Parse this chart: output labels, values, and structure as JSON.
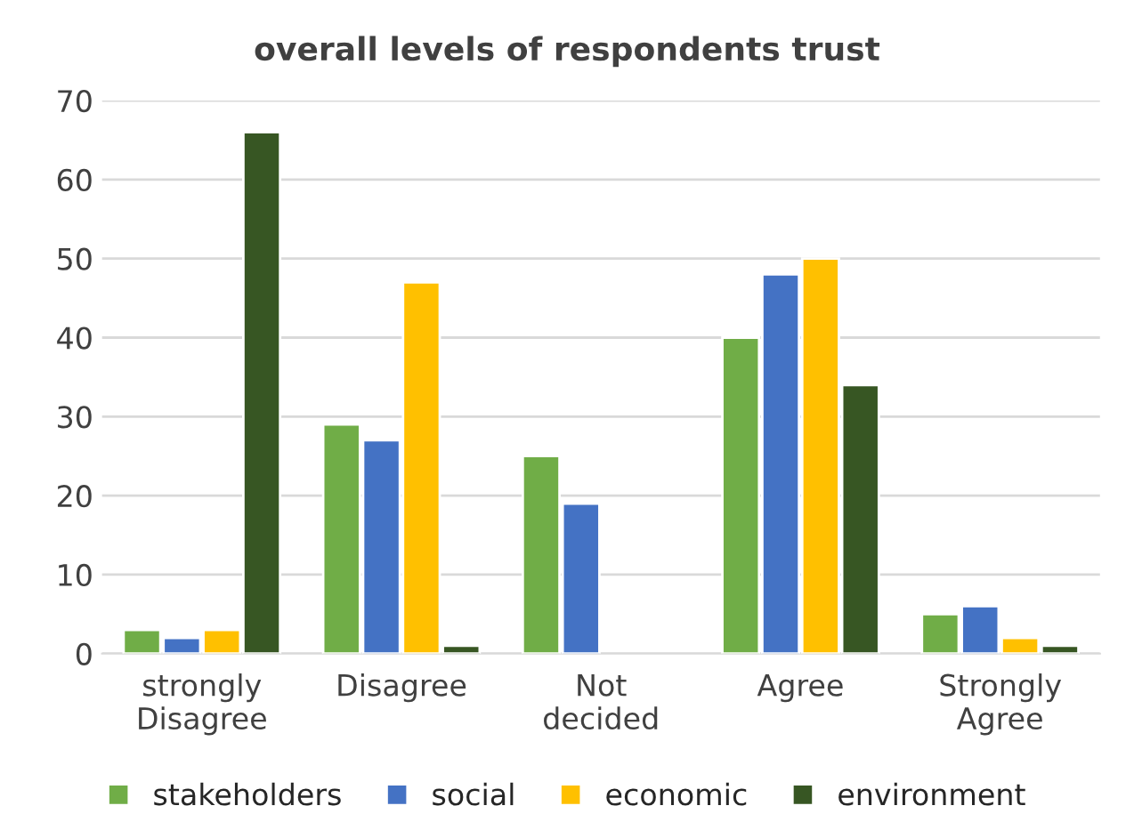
{
  "chart_data": {
    "type": "bar",
    "title": "overall levels of respondents trust",
    "categories": [
      "strongly\nDisagree",
      "Disagree",
      "Not\ndecided",
      "Agree",
      "Strongly\nAgree"
    ],
    "series": [
      {
        "name": "stakeholders",
        "color": "#70ad47",
        "values": [
          3,
          29,
          25,
          40,
          5
        ]
      },
      {
        "name": "social",
        "color": "#4472c4",
        "values": [
          2,
          27,
          19,
          48,
          6
        ]
      },
      {
        "name": "economic",
        "color": "#ffc000",
        "values": [
          3,
          47,
          null,
          50,
          2
        ]
      },
      {
        "name": "environment",
        "color": "#375623",
        "values": [
          66,
          1,
          null,
          34,
          1
        ]
      }
    ],
    "ylim": [
      0,
      70
    ],
    "yticks": [
      0,
      10,
      20,
      30,
      40,
      50,
      60,
      70
    ],
    "grid": "y",
    "legend": "bottom"
  }
}
